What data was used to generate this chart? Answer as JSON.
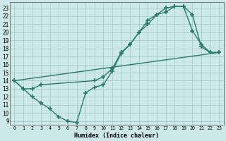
{
  "xlabel": "Humidex (Indice chaleur)",
  "bg_color": "#cce8e8",
  "grid_color": "#aacccc",
  "line_color": "#2a7a6a",
  "marker": "+",
  "markersize": 4,
  "markeredgewidth": 1.2,
  "linewidth": 1.0,
  "xlim": [
    -0.5,
    23.5
  ],
  "ylim": [
    8.5,
    23.7
  ],
  "xticks": [
    0,
    1,
    2,
    3,
    4,
    5,
    6,
    7,
    8,
    9,
    10,
    11,
    12,
    13,
    14,
    15,
    16,
    17,
    18,
    19,
    20,
    21,
    22,
    23
  ],
  "yticks": [
    9,
    10,
    11,
    12,
    13,
    14,
    15,
    16,
    17,
    18,
    19,
    20,
    21,
    22,
    23
  ],
  "line1_x": [
    0,
    1,
    2,
    3,
    4,
    5,
    6,
    7,
    8,
    9,
    10,
    11,
    12,
    13,
    14,
    15,
    16,
    17,
    18,
    19,
    20,
    21,
    22,
    23
  ],
  "line1_y": [
    14,
    13,
    12,
    11.2,
    10.5,
    9.5,
    9.0,
    8.8,
    12.5,
    13.2,
    13.5,
    15.2,
    17.4,
    18.5,
    20.0,
    21.0,
    22.2,
    22.5,
    23.2,
    23.2,
    20.2,
    18.5,
    17.5,
    17.5
  ],
  "line2_x": [
    0,
    1,
    2,
    3,
    9,
    10,
    11,
    12,
    13,
    14,
    15,
    16,
    17,
    18,
    19,
    20,
    21,
    22,
    23
  ],
  "line2_y": [
    14,
    13,
    13,
    13.5,
    14.0,
    14.5,
    15.5,
    17.5,
    18.5,
    20.0,
    21.5,
    22.2,
    23.0,
    23.2,
    23.2,
    22.2,
    18.2,
    17.5,
    17.5
  ],
  "line3_x": [
    0,
    23
  ],
  "line3_y": [
    14,
    17.5
  ]
}
